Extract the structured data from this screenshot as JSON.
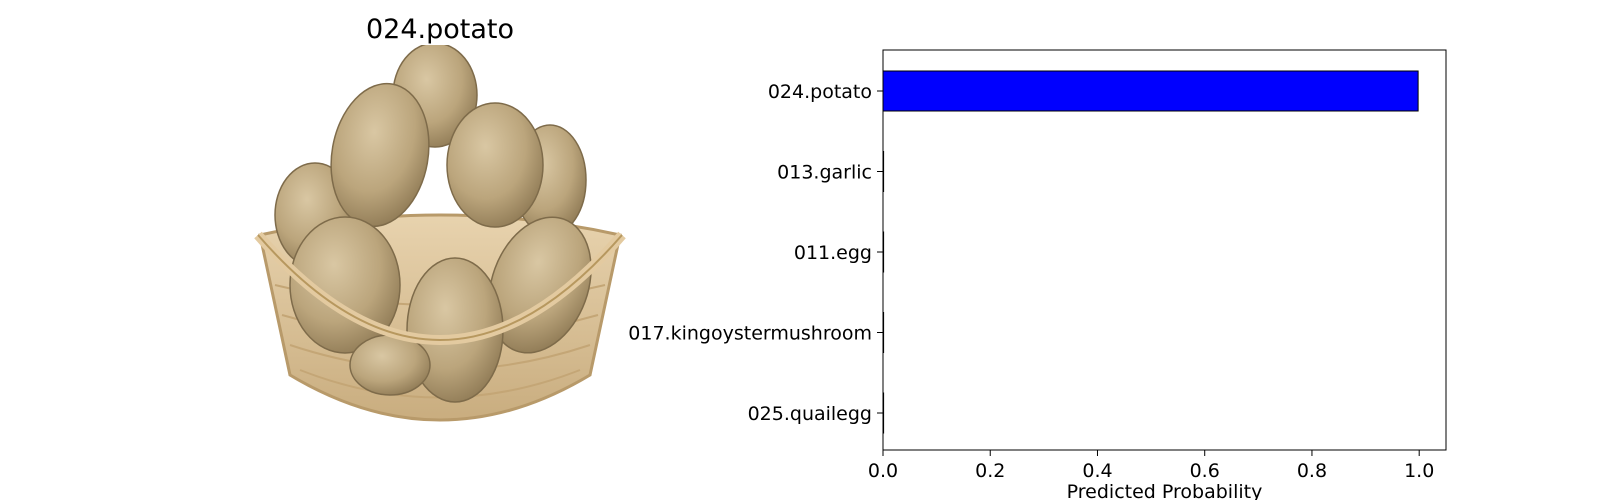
{
  "image_panel": {
    "title": "024.potato",
    "photo_subject": "basket of potatoes"
  },
  "chart_data": {
    "type": "bar",
    "orientation": "horizontal",
    "categories": [
      "024.potato",
      "013.garlic",
      "011.egg",
      "017.kingoystermushroom",
      "025.quailegg"
    ],
    "values": [
      0.998,
      0.001,
      0.0005,
      0.0003,
      0.0002
    ],
    "xlabel": "Predicted Probability",
    "ylabel": "",
    "xlim": [
      0,
      1.05
    ],
    "xticks": [
      "0.0",
      "0.2",
      "0.4",
      "0.6",
      "0.8",
      "1.0"
    ],
    "xtick_values": [
      0,
      0.2,
      0.4,
      0.6,
      0.8,
      1.0
    ],
    "bar_color": "#0000ff",
    "grid": false
  }
}
